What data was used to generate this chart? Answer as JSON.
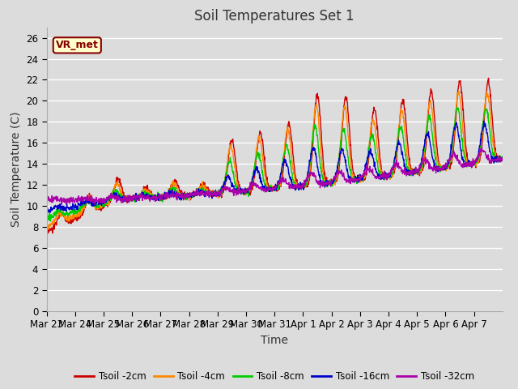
{
  "title": "Soil Temperatures Set 1",
  "xlabel": "Time",
  "ylabel": "Soil Temperature (C)",
  "ylim": [
    0,
    27
  ],
  "yticks": [
    0,
    2,
    4,
    6,
    8,
    10,
    12,
    14,
    16,
    18,
    20,
    22,
    24,
    26
  ],
  "x_labels": [
    "Mar 23",
    "Mar 24",
    "Mar 25",
    "Mar 26",
    "Mar 27",
    "Mar 28",
    "Mar 29",
    "Mar 30",
    "Mar 31",
    "Apr 1",
    "Apr 2",
    "Apr 3",
    "Apr 4",
    "Apr 5",
    "Apr 6",
    "Apr 7"
  ],
  "colors": [
    "#cc0000",
    "#ff8800",
    "#00cc00",
    "#0000cc",
    "#aa00aa"
  ],
  "labels": [
    "Tsoil -2cm",
    "Tsoil -4cm",
    "Tsoil -8cm",
    "Tsoil -16cm",
    "Tsoil -32cm"
  ],
  "annotation_text": "VR_met",
  "annotation_box_facecolor": "#ffffcc",
  "annotation_border_color": "#880000",
  "background_color": "#dcdcdc",
  "grid_color": "#ffffff",
  "title_fontsize": 12,
  "axis_label_fontsize": 10,
  "tick_fontsize": 8.5,
  "figwidth": 6.4,
  "figheight": 4.8,
  "dpi": 100
}
